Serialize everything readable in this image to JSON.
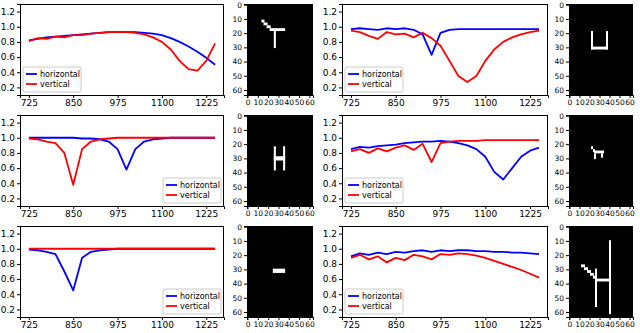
{
  "chart_data": [
    {
      "type": "line",
      "x": [
        725,
        750,
        775,
        800,
        825,
        850,
        875,
        900,
        925,
        950,
        975,
        1000,
        1025,
        1050,
        1075,
        1100,
        1125,
        1150,
        1175,
        1200,
        1225,
        1250
      ],
      "xlim": [
        700,
        1275
      ],
      "xticks": [
        725,
        850,
        975,
        1100,
        1225
      ],
      "ylim": [
        0.1,
        1.3
      ],
      "yticks": [
        0.2,
        0.4,
        0.6,
        0.8,
        {
          "value": 1,
          "label": "1.0"
        },
        1.2
      ],
      "legend": "lower left",
      "series": [
        {
          "name": "horizontal",
          "color": "#0000ff",
          "values": [
            0.82,
            0.84,
            0.86,
            0.87,
            0.88,
            0.89,
            0.9,
            0.91,
            0.92,
            0.93,
            0.93,
            0.93,
            0.93,
            0.92,
            0.91,
            0.89,
            0.85,
            0.8,
            0.74,
            0.67,
            0.59,
            0.5
          ]
        },
        {
          "name": "vertical",
          "color": "#ff0000",
          "values": [
            0.81,
            0.85,
            0.84,
            0.87,
            0.86,
            0.89,
            0.89,
            0.91,
            0.92,
            0.93,
            0.93,
            0.93,
            0.92,
            0.9,
            0.86,
            0.8,
            0.7,
            0.55,
            0.44,
            0.42,
            0.55,
            0.78
          ]
        }
      ]
    },
    {
      "type": "image",
      "xlim": [
        -0.5,
        63.5
      ],
      "ylim": [
        63.5,
        -0.5
      ],
      "xticks": [
        0,
        10,
        20,
        30,
        40,
        50,
        60
      ],
      "yticks": [
        0,
        10,
        20,
        30,
        40,
        50,
        60
      ],
      "white_regions": [
        [
          14,
          11,
          16,
          12
        ],
        [
          16,
          13,
          19,
          14
        ],
        [
          19,
          15,
          22,
          16
        ],
        [
          22,
          17,
          36,
          18
        ],
        [
          26,
          19,
          27,
          30
        ]
      ]
    },
    {
      "type": "line",
      "x": [
        725,
        750,
        775,
        800,
        825,
        850,
        875,
        900,
        925,
        950,
        975,
        1000,
        1025,
        1050,
        1075,
        1100,
        1125,
        1150,
        1175,
        1200,
        1225,
        1250
      ],
      "xlim": [
        700,
        1275
      ],
      "xticks": [
        725,
        850,
        975,
        1100,
        1225
      ],
      "ylim": [
        0.1,
        1.3
      ],
      "yticks": [
        0.2,
        0.4,
        0.6,
        0.8,
        {
          "value": 1,
          "label": "1.0"
        },
        1.2
      ],
      "legend": "lower left",
      "series": [
        {
          "name": "horizontal",
          "color": "#0000ff",
          "values": [
            0.97,
            0.98,
            0.97,
            0.96,
            0.98,
            0.97,
            0.98,
            0.96,
            0.9,
            0.63,
            0.92,
            0.96,
            0.97,
            0.97,
            0.97,
            0.97,
            0.97,
            0.97,
            0.97,
            0.97,
            0.97,
            0.97
          ]
        },
        {
          "name": "vertical",
          "color": "#ff0000",
          "values": [
            0.95,
            0.93,
            0.88,
            0.84,
            0.93,
            0.9,
            0.91,
            0.86,
            0.92,
            0.85,
            0.75,
            0.55,
            0.35,
            0.27,
            0.35,
            0.55,
            0.7,
            0.8,
            0.86,
            0.9,
            0.93,
            0.95
          ]
        }
      ]
    },
    {
      "type": "image",
      "xlim": [
        -0.5,
        63.5
      ],
      "ylim": [
        63.5,
        -0.5
      ],
      "xticks": [
        0,
        10,
        20,
        30,
        40,
        50,
        60
      ],
      "yticks": [
        0,
        10,
        20,
        30,
        40,
        50,
        60
      ],
      "white_regions": [
        [
          22,
          19,
          23,
          31
        ],
        [
          37,
          19,
          38,
          31
        ],
        [
          22,
          30,
          38,
          31
        ]
      ]
    },
    {
      "type": "line",
      "x": [
        725,
        750,
        775,
        800,
        825,
        850,
        875,
        900,
        925,
        950,
        975,
        1000,
        1025,
        1050,
        1075,
        1100,
        1125,
        1150,
        1175,
        1200,
        1225,
        1250
      ],
      "xlim": [
        700,
        1275
      ],
      "xticks": [
        725,
        850,
        975,
        1100,
        1225
      ],
      "ylim": [
        0.1,
        1.3
      ],
      "yticks": [
        0.2,
        0.4,
        0.6,
        0.8,
        {
          "value": 1,
          "label": "1.0"
        },
        1.2
      ],
      "legend": "lower right",
      "series": [
        {
          "name": "horizontal",
          "color": "#0000ff",
          "values": [
            1,
            1,
            1,
            1,
            1,
            1,
            0.99,
            0.99,
            0.98,
            0.95,
            0.85,
            0.58,
            0.85,
            0.95,
            0.98,
            0.99,
            1,
            1,
            1,
            1,
            1,
            1
          ]
        },
        {
          "name": "vertical",
          "color": "#ff0000",
          "values": [
            0.99,
            0.98,
            0.95,
            0.93,
            0.8,
            0.38,
            0.85,
            0.95,
            0.98,
            0.99,
            1,
            1,
            1,
            1,
            1,
            1,
            1,
            1,
            1,
            1,
            1,
            1
          ]
        }
      ]
    },
    {
      "type": "image",
      "xlim": [
        -0.5,
        63.5
      ],
      "ylim": [
        63.5,
        -0.5
      ],
      "xticks": [
        0,
        10,
        20,
        30,
        40,
        50,
        60
      ],
      "yticks": [
        0,
        10,
        20,
        30,
        40,
        50,
        60
      ],
      "white_regions": [
        [
          26,
          22,
          27,
          38
        ],
        [
          35,
          22,
          36,
          38
        ],
        [
          26,
          29,
          36,
          31
        ]
      ]
    },
    {
      "type": "line",
      "x": [
        725,
        750,
        775,
        800,
        825,
        850,
        875,
        900,
        925,
        950,
        975,
        1000,
        1025,
        1050,
        1075,
        1100,
        1125,
        1150,
        1175,
        1200,
        1225,
        1250
      ],
      "xlim": [
        700,
        1275
      ],
      "xticks": [
        725,
        850,
        975,
        1100,
        1225
      ],
      "ylim": [
        0.1,
        1.3
      ],
      "yticks": [
        0.2,
        0.4,
        0.6,
        0.8,
        {
          "value": 1,
          "label": "1.0"
        },
        1.2
      ],
      "legend": "lower left",
      "series": [
        {
          "name": "horizontal",
          "color": "#0000ff",
          "values": [
            0.85,
            0.88,
            0.87,
            0.89,
            0.9,
            0.91,
            0.93,
            0.94,
            0.95,
            0.95,
            0.96,
            0.95,
            0.93,
            0.9,
            0.85,
            0.75,
            0.55,
            0.45,
            0.6,
            0.75,
            0.83,
            0.87
          ]
        },
        {
          "name": "vertical",
          "color": "#ff0000",
          "values": [
            0.82,
            0.85,
            0.8,
            0.86,
            0.82,
            0.87,
            0.9,
            0.84,
            0.92,
            0.68,
            0.93,
            0.95,
            0.96,
            0.96,
            0.96,
            0.97,
            0.97,
            0.97,
            0.97,
            0.97,
            0.97,
            0.97
          ]
        }
      ]
    },
    {
      "type": "image",
      "xlim": [
        -0.5,
        63.5
      ],
      "ylim": [
        63.5,
        -0.5
      ],
      "xticks": [
        0,
        10,
        20,
        30,
        40,
        50,
        60
      ],
      "yticks": [
        0,
        10,
        20,
        30,
        40,
        50,
        60
      ],
      "white_regions": [
        [
          22,
          22,
          23,
          23
        ],
        [
          24,
          24,
          25,
          25
        ],
        [
          25,
          25,
          34,
          26
        ],
        [
          25,
          27,
          26,
          30
        ],
        [
          32,
          27,
          33,
          29
        ]
      ]
    },
    {
      "type": "line",
      "x": [
        725,
        750,
        775,
        800,
        825,
        850,
        875,
        900,
        925,
        950,
        975,
        1000,
        1025,
        1050,
        1075,
        1100,
        1125,
        1150,
        1175,
        1200,
        1225,
        1250
      ],
      "xlim": [
        700,
        1275
      ],
      "xticks": [
        725,
        850,
        975,
        1100,
        1225
      ],
      "ylim": [
        0.1,
        1.3
      ],
      "yticks": [
        0.2,
        0.4,
        0.6,
        0.8,
        {
          "value": 1,
          "label": "1.0"
        },
        1.2
      ],
      "legend": "lower right",
      "series": [
        {
          "name": "horizontal",
          "color": "#0000ff",
          "values": [
            0.99,
            0.98,
            0.96,
            0.93,
            0.7,
            0.45,
            0.88,
            0.96,
            0.98,
            0.99,
            1,
            1,
            1,
            1,
            1,
            1,
            1,
            1,
            1,
            1,
            1,
            1
          ]
        },
        {
          "name": "vertical",
          "color": "#ff0000",
          "values": [
            1,
            1,
            1,
            1,
            1,
            1,
            1,
            1,
            1,
            1,
            1,
            1,
            1,
            1,
            1,
            1,
            1,
            1,
            1,
            1,
            1,
            1
          ]
        }
      ]
    },
    {
      "type": "image",
      "xlim": [
        -0.5,
        63.5
      ],
      "ylim": [
        63.5,
        -0.5
      ],
      "xticks": [
        0,
        10,
        20,
        30,
        40,
        50,
        60
      ],
      "yticks": [
        0,
        10,
        20,
        30,
        40,
        50,
        60
      ],
      "white_regions": [
        [
          25,
          30,
          36,
          32
        ]
      ]
    },
    {
      "type": "line",
      "x": [
        725,
        750,
        775,
        800,
        825,
        850,
        875,
        900,
        925,
        950,
        975,
        1000,
        1025,
        1050,
        1075,
        1100,
        1125,
        1150,
        1175,
        1200,
        1225,
        1250
      ],
      "xlim": [
        700,
        1275
      ],
      "xticks": [
        725,
        850,
        975,
        1100,
        1225
      ],
      "ylim": [
        0.1,
        1.3
      ],
      "yticks": [
        0.2,
        0.4,
        0.6,
        0.8,
        {
          "value": 1,
          "label": "1.0"
        },
        1.2
      ],
      "legend": "lower left",
      "series": [
        {
          "name": "horizontal",
          "color": "#0000ff",
          "values": [
            0.9,
            0.94,
            0.92,
            0.95,
            0.93,
            0.96,
            0.95,
            0.97,
            0.98,
            0.96,
            0.98,
            0.97,
            0.98,
            0.98,
            0.97,
            0.97,
            0.96,
            0.96,
            0.95,
            0.95,
            0.94,
            0.93
          ]
        },
        {
          "name": "vertical",
          "color": "#ff0000",
          "values": [
            0.88,
            0.92,
            0.86,
            0.9,
            0.82,
            0.88,
            0.85,
            0.92,
            0.9,
            0.86,
            0.93,
            0.92,
            0.94,
            0.93,
            0.91,
            0.88,
            0.84,
            0.8,
            0.76,
            0.72,
            0.67,
            0.62
          ]
        }
      ]
    },
    {
      "type": "image",
      "xlim": [
        -0.5,
        63.5
      ],
      "ylim": [
        63.5,
        -0.5
      ],
      "xticks": [
        0,
        10,
        20,
        30,
        40,
        50,
        60
      ],
      "yticks": [
        0,
        10,
        20,
        30,
        40,
        50,
        60
      ],
      "white_regions": [
        [
          12,
          27,
          15,
          28
        ],
        [
          15,
          29,
          18,
          30
        ],
        [
          18,
          31,
          21,
          32
        ],
        [
          21,
          33,
          24,
          34
        ],
        [
          24,
          35,
          27,
          36
        ],
        [
          27,
          37,
          41,
          38
        ],
        [
          26,
          30,
          27,
          56
        ],
        [
          40,
          10,
          41,
          61
        ]
      ]
    }
  ]
}
